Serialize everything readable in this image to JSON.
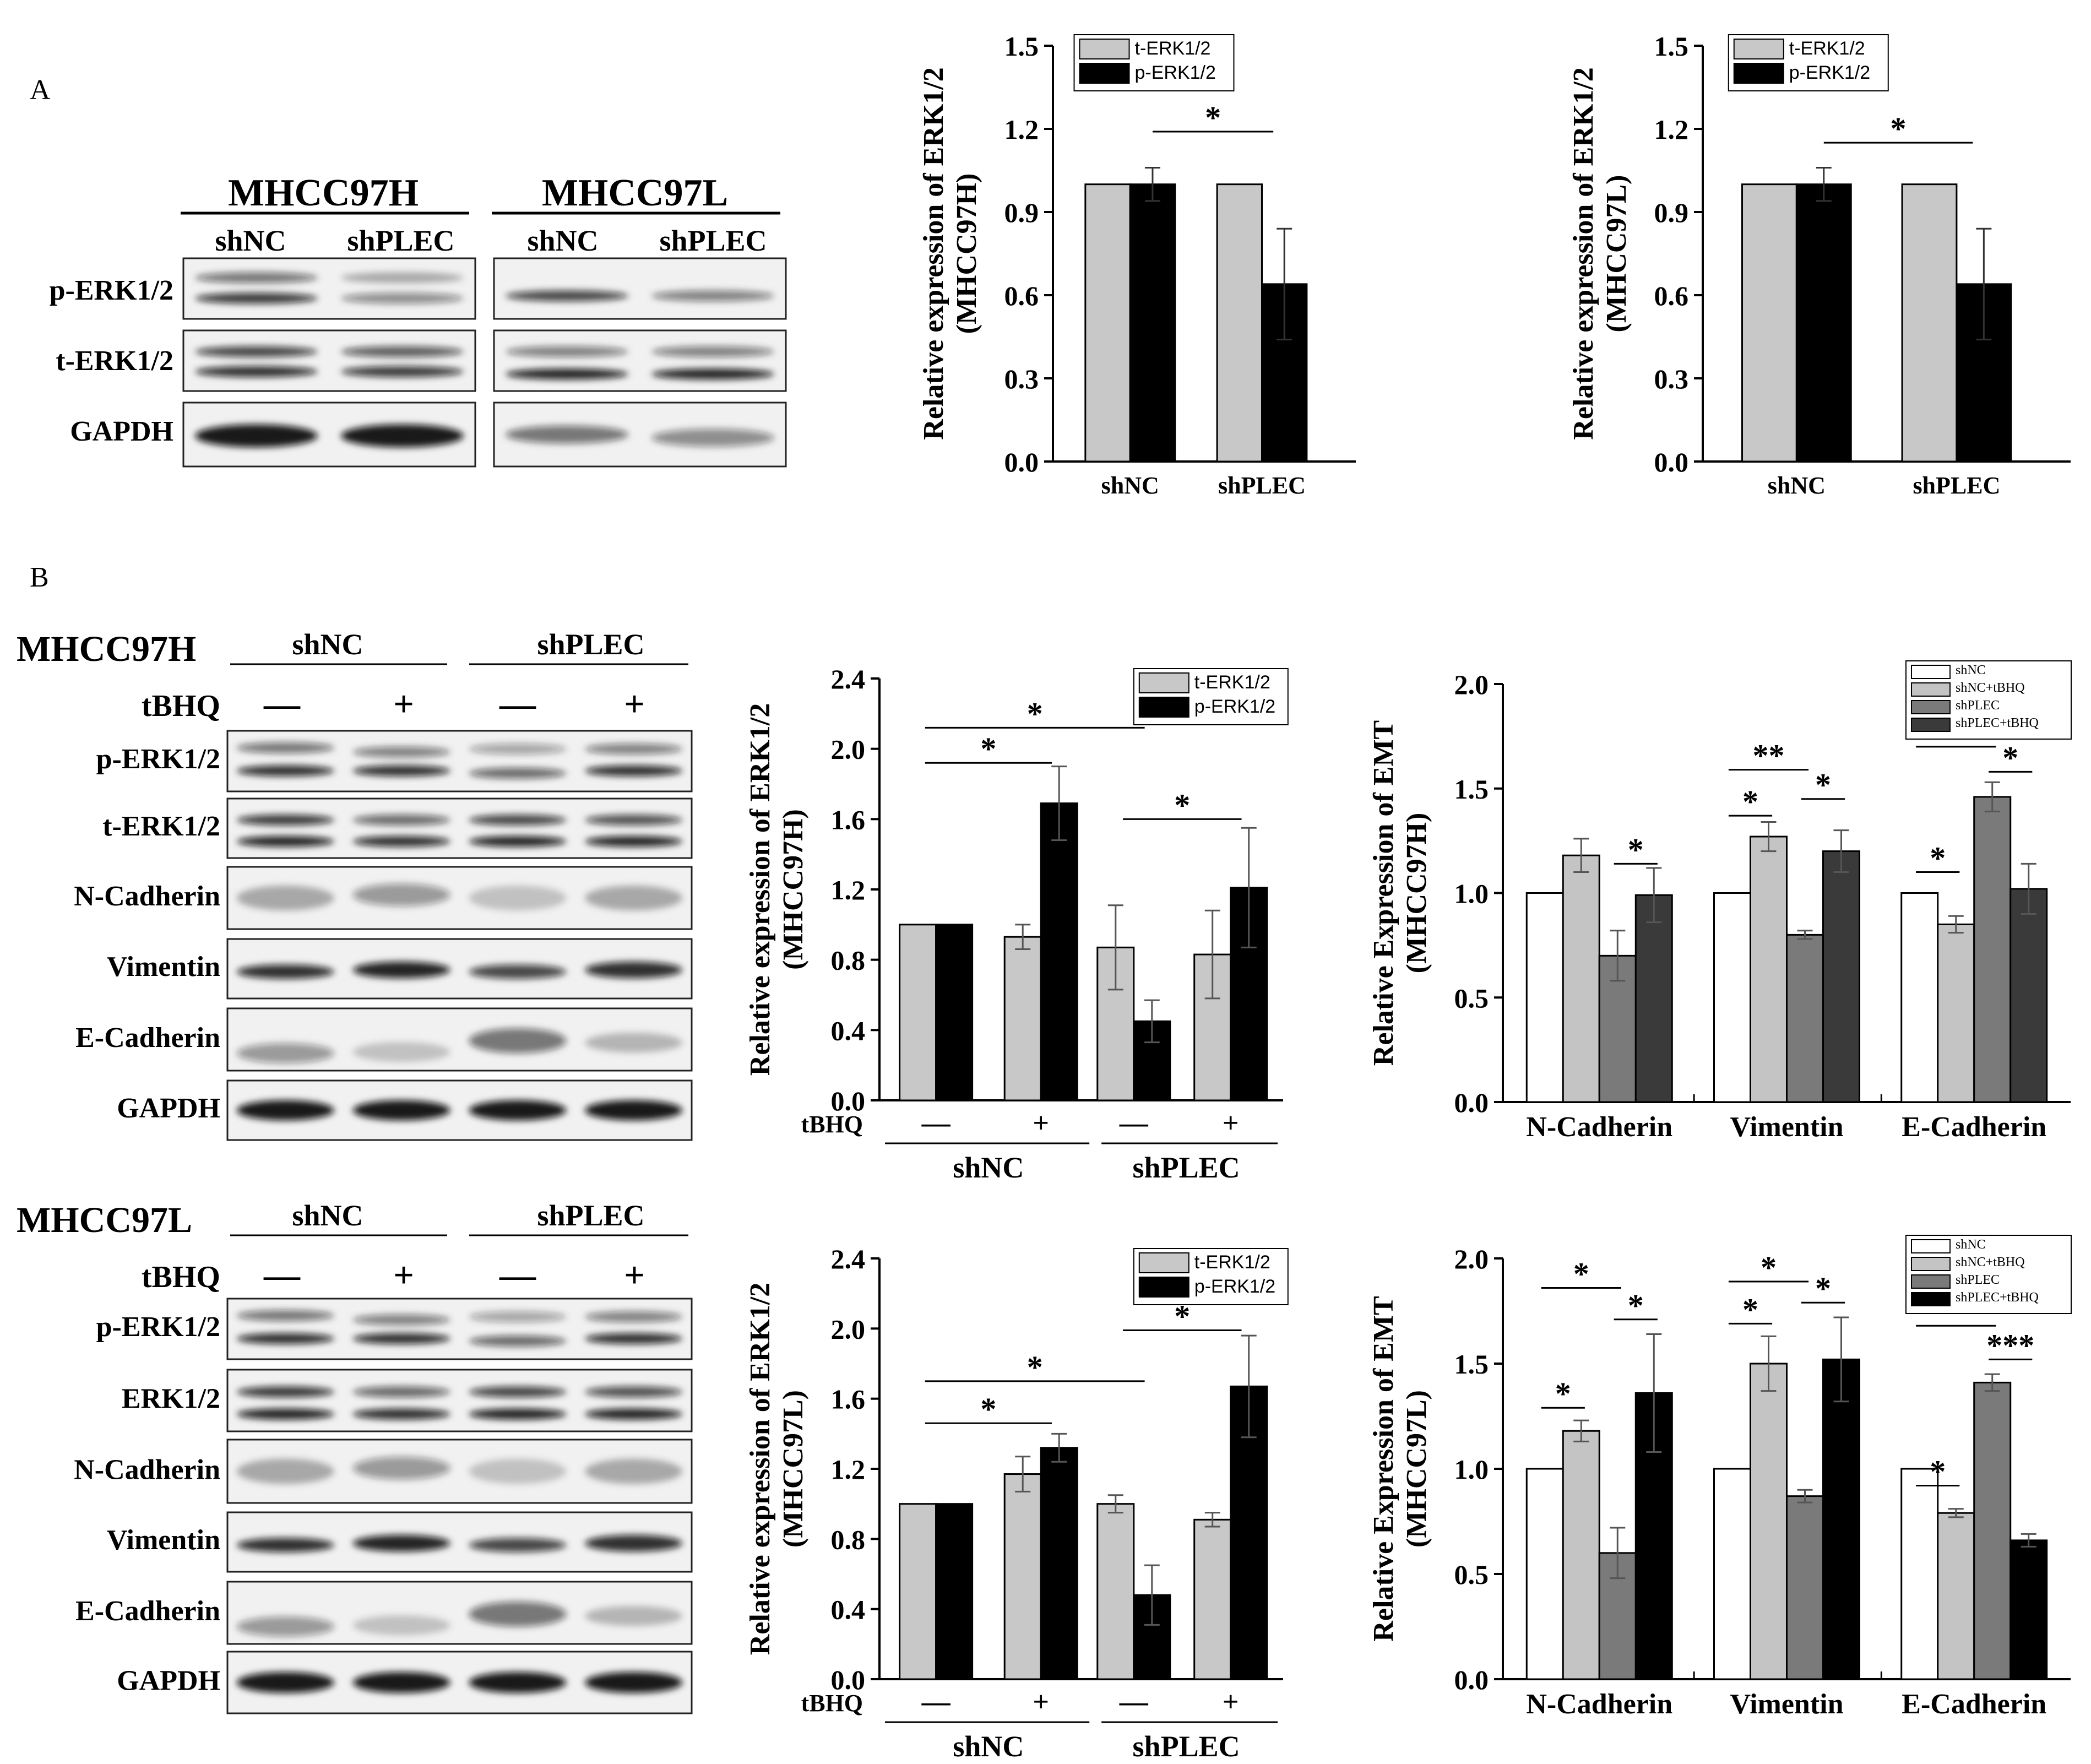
{
  "panels": {
    "A": "A",
    "B": "B"
  },
  "blots": [
    {
      "cell_title": "MHCC97H",
      "groups": [
        "shNC",
        "shPLEC"
      ],
      "rows": [
        "p-ERK1/2",
        "t-ERK1/2",
        "GAPDH"
      ]
    },
    {
      "cell_title": "MHCC97L",
      "groups": [
        "shNC",
        "shPLEC"
      ],
      "rows": []
    },
    {
      "cell_title": "MHCC97H",
      "groups": [
        "shNC",
        "shPLEC"
      ],
      "treatment_label": "tBHQ",
      "signs": [
        "—",
        "+",
        "—",
        "+"
      ],
      "rows": [
        "p-ERK1/2",
        "t-ERK1/2",
        "N-Cadherin",
        "Vimentin",
        "E-Cadherin",
        "GAPDH"
      ]
    },
    {
      "cell_title": "MHCC97L",
      "groups": [
        "shNC",
        "shPLEC"
      ],
      "treatment_label": "tBHQ",
      "signs": [
        "—",
        "+",
        "—",
        "+"
      ],
      "rows": [
        "p-ERK1/2",
        "ERK1/2",
        "N-Cadherin",
        "Vimentin",
        "E-Cadherin",
        "GAPDH"
      ]
    }
  ],
  "colors": {
    "t_erk_gray": "#c8c8c8",
    "p_erk_black": "#000000",
    "emt_shNC": "#ffffff",
    "emt_shNC_tBHQ": "#c4c4c4",
    "emt_shPLEC": "#7a7a7a",
    "emt_shPLEC_tBHQ_97H": "#3a3a3a",
    "emt_shPLEC_tBHQ_97L": "#000000"
  },
  "chart_data": [
    {
      "type": "bar",
      "ylabel": [
        "Relative expression of ERK1/2",
        "(MHCC97H)"
      ],
      "ylim": [
        0,
        1.5
      ],
      "yticks": [
        "0.0",
        "0.3",
        "0.6",
        "0.9",
        "1.2",
        "1.5"
      ],
      "categories": [
        "shNC",
        "shPLEC"
      ],
      "series": [
        {
          "name": "t-ERK1/2",
          "values": [
            1.0,
            1.0
          ],
          "errors": [
            0,
            0
          ]
        },
        {
          "name": "p-ERK1/2",
          "values": [
            1.0,
            0.64
          ],
          "errors": [
            0.06,
            0.2
          ]
        }
      ],
      "significance": [
        {
          "label": "*",
          "from": "shNC",
          "to": "shPLEC",
          "y": 1.19
        }
      ],
      "legend": "top-left"
    },
    {
      "type": "bar",
      "ylabel": [
        "Relative expression of ERK1/2",
        "(MHCC97L)"
      ],
      "ylim": [
        0,
        1.5
      ],
      "yticks": [
        "0.0",
        "0.3",
        "0.6",
        "0.9",
        "1.2",
        "1.5"
      ],
      "categories": [
        "shNC",
        "shPLEC"
      ],
      "series": [
        {
          "name": "t-ERK1/2",
          "values": [
            1.0,
            1.0
          ],
          "errors": [
            0,
            0
          ]
        },
        {
          "name": "p-ERK1/2",
          "values": [
            1.0,
            0.64
          ],
          "errors": [
            0.06,
            0.2
          ]
        }
      ],
      "significance": [
        {
          "label": "*",
          "from": "shNC",
          "to": "shPLEC",
          "y": 1.15
        }
      ],
      "legend": "top-left"
    },
    {
      "type": "bar",
      "ylabel": [
        "Relative expression of ERK1/2",
        "(MHCC97H)"
      ],
      "ylim": [
        0,
        2.4
      ],
      "yticks": [
        "0.0",
        "0.4",
        "0.8",
        "1.2",
        "1.6",
        "2.0",
        "2.4"
      ],
      "treatment_label": "tBHQ",
      "signs": [
        "—",
        "+",
        "—",
        "+"
      ],
      "group_labels": [
        "shNC",
        "shPLEC"
      ],
      "series": [
        {
          "name": "t-ERK1/2",
          "values": [
            1.0,
            0.93,
            0.87,
            0.83
          ],
          "errors": [
            0,
            0.07,
            0.24,
            0.25
          ]
        },
        {
          "name": "p-ERK1/2",
          "values": [
            1.0,
            1.69,
            0.45,
            1.21
          ],
          "errors": [
            0,
            0.21,
            0.12,
            0.34
          ]
        }
      ],
      "significance": [
        {
          "label": "*",
          "from": 0,
          "to": 1,
          "y": 1.92
        },
        {
          "label": "*",
          "from": 0,
          "to": 2,
          "y": 2.12
        },
        {
          "label": "*",
          "from": 2,
          "to": 3,
          "y": 1.6
        }
      ],
      "legend": "top-right"
    },
    {
      "type": "bar",
      "ylabel": [
        "Relative Expression of EMT",
        "(MHCC97H)"
      ],
      "ylim": [
        0,
        2.0
      ],
      "yticks": [
        "0.0",
        "0.5",
        "1.0",
        "1.5",
        "2.0"
      ],
      "categories": [
        "N-Cadherin",
        "Vimentin",
        "E-Cadherin"
      ],
      "series": [
        {
          "name": "shNC",
          "values": [
            1.0,
            1.0,
            1.0
          ],
          "errors": [
            0,
            0,
            0
          ]
        },
        {
          "name": "shNC+tBHQ",
          "values": [
            1.18,
            1.27,
            0.85
          ],
          "errors": [
            0.08,
            0.07,
            0.04
          ]
        },
        {
          "name": "shPLEC",
          "values": [
            0.7,
            0.8,
            1.46
          ],
          "errors": [
            0.12,
            0.02,
            0.07
          ]
        },
        {
          "name": "shPLEC+tBHQ",
          "values": [
            0.99,
            1.2,
            1.02
          ],
          "errors": [
            0.13,
            0.1,
            0.12
          ]
        }
      ],
      "significance": [
        {
          "label": "*",
          "cat": 0,
          "from": 2,
          "to": 3,
          "y": 1.14
        },
        {
          "label": "*",
          "cat": 1,
          "from": 0,
          "to": 1,
          "y": 1.37
        },
        {
          "label": "**",
          "cat": 1,
          "from": 0,
          "to": 2,
          "y": 1.59
        },
        {
          "label": "*",
          "cat": 1,
          "from": 2,
          "to": 3,
          "y": 1.45
        },
        {
          "label": "*",
          "cat": 2,
          "from": 0,
          "to": 1,
          "y": 1.1
        },
        {
          "label": "*",
          "cat": 2,
          "from": 0,
          "to": 2,
          "y": 1.7
        },
        {
          "label": "*",
          "cat": 2,
          "from": 2,
          "to": 3,
          "y": 1.58
        }
      ],
      "legend": "top-right"
    },
    {
      "type": "bar",
      "ylabel": [
        "Relative expression of ERK1/2",
        "(MHCC97L)"
      ],
      "ylim": [
        0,
        2.4
      ],
      "yticks": [
        "0.0",
        "0.4",
        "0.8",
        "1.2",
        "1.6",
        "2.0",
        "2.4"
      ],
      "treatment_label": "tBHQ",
      "signs": [
        "—",
        "+",
        "—",
        "+"
      ],
      "group_labels": [
        "shNC",
        "shPLEC"
      ],
      "series": [
        {
          "name": "t-ERK1/2",
          "values": [
            1.0,
            1.17,
            1.0,
            0.91
          ],
          "errors": [
            0,
            0.1,
            0.05,
            0.04
          ]
        },
        {
          "name": "p-ERK1/2",
          "values": [
            1.0,
            1.32,
            0.48,
            1.67
          ],
          "errors": [
            0,
            0.08,
            0.17,
            0.29
          ]
        }
      ],
      "significance": [
        {
          "label": "*",
          "from": 0,
          "to": 1,
          "y": 1.46
        },
        {
          "label": "*",
          "from": 0,
          "to": 2,
          "y": 1.7
        },
        {
          "label": "*",
          "from": 2,
          "to": 3,
          "y": 1.99
        }
      ],
      "legend": "top-right"
    },
    {
      "type": "bar",
      "ylabel": [
        "Relative Expression of EMT",
        "(MHCC97L)"
      ],
      "ylim": [
        0,
        2.0
      ],
      "yticks": [
        "0.0",
        "0.5",
        "1.0",
        "1.5",
        "2.0"
      ],
      "categories": [
        "N-Cadherin",
        "Vimentin",
        "E-Cadherin"
      ],
      "series": [
        {
          "name": "shNC",
          "values": [
            1.0,
            1.0,
            1.0
          ],
          "errors": [
            0,
            0,
            0
          ]
        },
        {
          "name": "shNC+tBHQ",
          "values": [
            1.18,
            1.5,
            0.79
          ],
          "errors": [
            0.05,
            0.13,
            0.02
          ]
        },
        {
          "name": "shPLEC",
          "values": [
            0.6,
            0.87,
            1.41
          ],
          "errors": [
            0.12,
            0.03,
            0.04
          ]
        },
        {
          "name": "shPLEC+tBHQ",
          "values": [
            1.36,
            1.52,
            0.66
          ],
          "errors": [
            0.28,
            0.2,
            0.03
          ]
        }
      ],
      "significance": [
        {
          "label": "*",
          "cat": 0,
          "from": 0,
          "to": 1,
          "y": 1.29
        },
        {
          "label": "*",
          "cat": 0,
          "from": 0,
          "to": 2,
          "y": 1.86
        },
        {
          "label": "*",
          "cat": 0,
          "from": 2,
          "to": 3,
          "y": 1.71
        },
        {
          "label": "*",
          "cat": 1,
          "from": 0,
          "to": 1,
          "y": 1.69
        },
        {
          "label": "*",
          "cat": 1,
          "from": 0,
          "to": 2,
          "y": 1.89
        },
        {
          "label": "*",
          "cat": 1,
          "from": 2,
          "to": 3,
          "y": 1.79
        },
        {
          "label": "*",
          "cat": 2,
          "from": 0,
          "to": 1,
          "y": 0.92
        },
        {
          "label": "*",
          "cat": 2,
          "from": 0,
          "to": 2,
          "y": 1.68
        },
        {
          "label": "***",
          "cat": 2,
          "from": 2,
          "to": 3,
          "y": 1.52
        }
      ],
      "legend": "top-right"
    }
  ]
}
